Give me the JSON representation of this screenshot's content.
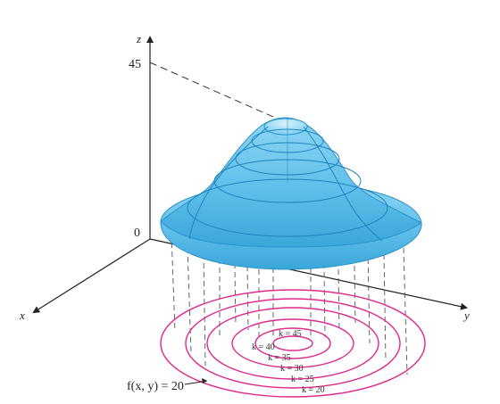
{
  "axes": {
    "z_label": "z",
    "x_label": "x",
    "y_label": "y",
    "z_ticks": [
      "45",
      "0"
    ]
  },
  "function_label": "f(x, y) = 20",
  "contour_levels": [
    {
      "k": 45,
      "label": "k = 45"
    },
    {
      "k": 40,
      "label": "k = 40"
    },
    {
      "k": 35,
      "label": "k = 35"
    },
    {
      "k": 30,
      "label": "k = 30"
    },
    {
      "k": 25,
      "label": "k = 25"
    },
    {
      "k": 20,
      "label": "k = 20"
    }
  ],
  "colors": {
    "surface": "#6cc6ee",
    "surface_dark": "#2a93c9",
    "surface_light": "#c9ecfa",
    "contour": "#e0288c",
    "axis": "#222222",
    "dash": "#555555"
  }
}
